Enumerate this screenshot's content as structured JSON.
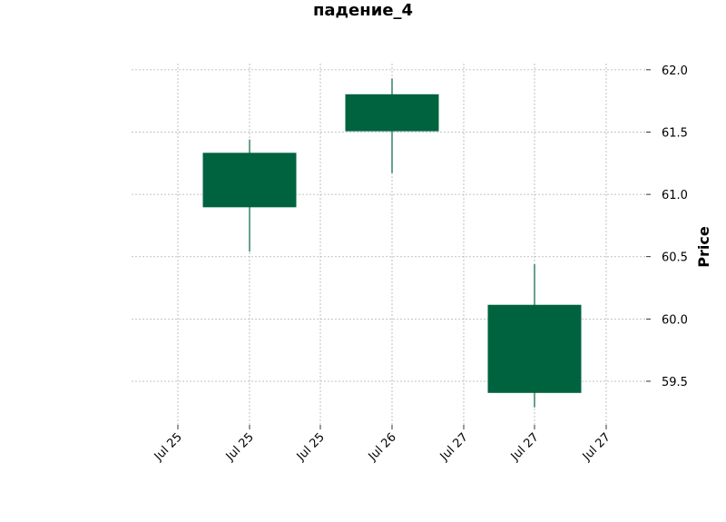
{
  "chart_data": {
    "type": "candlestick",
    "title": "падение_4",
    "xlabel": "",
    "ylabel": "Price",
    "x_tick_labels": [
      "Jul 25",
      "Jul 25",
      "Jul 25",
      "Jul 26",
      "Jul 27",
      "Jul 27",
      "Jul 27"
    ],
    "y_ticks": [
      "59.5",
      "60.0",
      "60.5",
      "61.0",
      "61.5",
      "62.0"
    ],
    "ylim": [
      59.15,
      62.05
    ],
    "grid": true,
    "y_axis_side": "right",
    "candles": [
      {
        "open": 60.9,
        "high": 61.44,
        "low": 60.54,
        "close": 61.33
      },
      {
        "open": 61.51,
        "high": 61.93,
        "low": 61.17,
        "close": 61.8
      },
      {
        "open": 59.41,
        "high": 60.44,
        "low": 59.29,
        "close": 60.11
      }
    ],
    "colors": {
      "candle": "#006340",
      "grid": "#b0b0b0"
    }
  }
}
